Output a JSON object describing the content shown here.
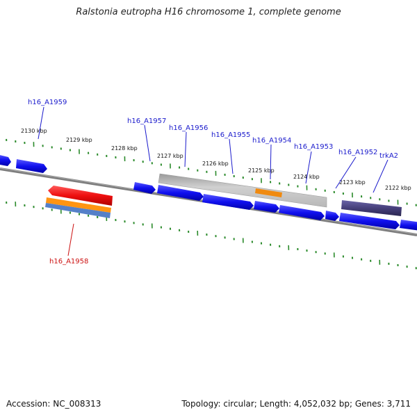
{
  "title": "Ralstonia eutropha H16 chromosome 1, complete genome",
  "footer": {
    "accession": "Accession: NC_008313",
    "topology": "Topology: circular; Length: 4,052,032 bp; Genes: 3,711"
  },
  "colors": {
    "backbone": "#808080",
    "tick": "#2a8a2a",
    "gene_forward": "#1010ee",
    "gene_label": "#1a1acc",
    "highlight_label": "#cc1010",
    "highlight_red": "#ee0f0f",
    "highlight_orange": "#ff9412",
    "highlight_blue": "#5580c8",
    "region_gray": "#c4c4c4",
    "region_orange": "#f08a10",
    "region_purple": "#46407a"
  },
  "kbp_ticks": [
    "2130 kbp",
    "2129 kbp",
    "2128 kbp",
    "2127 kbp",
    "2126 kbp",
    "2125 kbp",
    "2124 kbp",
    "2123 kbp",
    "2122 kbp"
  ],
  "gene_labels": [
    {
      "name": "h16_A1959",
      "color": "blue"
    },
    {
      "name": "h16_A1957",
      "color": "blue"
    },
    {
      "name": "h16_A1956",
      "color": "blue"
    },
    {
      "name": "h16_A1955",
      "color": "blue"
    },
    {
      "name": "h16_A1954",
      "color": "blue"
    },
    {
      "name": "h16_A1953",
      "color": "blue"
    },
    {
      "name": "h16_A1952",
      "color": "blue"
    },
    {
      "name": "trkA2",
      "color": "blue"
    },
    {
      "name": "h16_A1958",
      "color": "red"
    }
  ]
}
